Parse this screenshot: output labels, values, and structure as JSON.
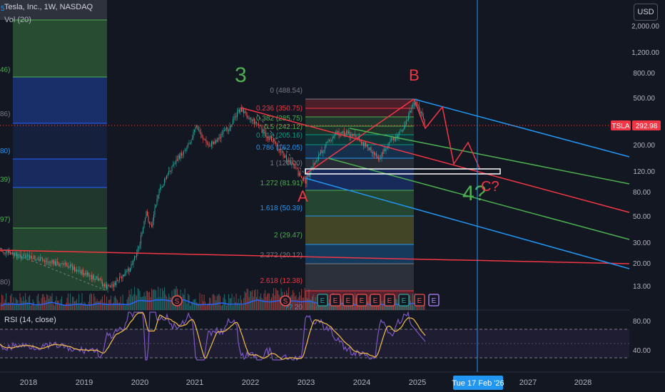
{
  "header": {
    "symbol_line": "Tesla, Inc., 1W, NASDAQ",
    "volume_label": "Vol (20)",
    "rsi_label": "RSI (14, close)",
    "currency": "USD"
  },
  "price_axis": {
    "ticks": [
      "2,000.00",
      "1,200.00",
      "800.00",
      "500.00",
      "200.00",
      "120.00",
      "80.00",
      "50.00",
      "30.00",
      "20.00",
      "13.00"
    ],
    "last_symbol": "TSLA",
    "last_price": "292.98"
  },
  "rsi_axis": {
    "ticks": [
      "80.00",
      "40.00"
    ]
  },
  "time_axis": {
    "ticks": [
      "2018",
      "2019",
      "2020",
      "2021",
      "2022",
      "2023",
      "2024",
      "2025",
      "2027",
      "2028"
    ],
    "crosshair_label": "Tue 17 Feb '26"
  },
  "left_fib_labels": [
    "46)",
    "86)",
    "80)",
    "39)",
    "97)",
    "80)"
  ],
  "left_fib_top": "5",
  "fib_labels": [
    "0 (488.54)",
    "0.236 (350.75)",
    "0.382 (285.75)",
    "0.5 (242.12)",
    "0.618 (205.16)",
    "0.786 (162.05)",
    "1 (120.00)",
    "1.272 (81.91)",
    "1.618 (50.39)",
    "2 (29.47)",
    "2.272 (20.12)",
    "2.618 (12.38)"
  ],
  "fib_bottom_partial": "?? 20",
  "wave_labels": {
    "three": "3",
    "a": "A",
    "b": "B",
    "four": "4?",
    "c": "C?"
  },
  "event_markers": {
    "split": "S",
    "earnings": "E"
  },
  "colors": {
    "background": "#131722",
    "up": "#26a69a",
    "down": "#ef5350",
    "pitchfork_red": "#f23645",
    "pitchfork_green": "#4caf50",
    "pitchfork_blue": "#2196f3",
    "rsi_line": "#7e57c2",
    "rsi_ma": "#f5c046",
    "volume_ma": "#2962ff",
    "crosshair": "#2196f3"
  },
  "chart_data": {
    "type": "candlestick",
    "title": "Tesla, Inc., 1W, NASDAQ",
    "y_scale": "log",
    "ylim": [
      11,
      3000
    ],
    "xlim": [
      "2017-08",
      "2028-10"
    ],
    "last_price": 292.98,
    "swing_points": [
      {
        "label": "3",
        "date": "2021-11",
        "price": 414
      },
      {
        "label": "A",
        "date": "2023-01",
        "price": 101.81
      },
      {
        "label": "B",
        "date": "2024-12",
        "price": 488.54
      },
      {
        "label": "4?",
        "date": "2026-02",
        "price": 120
      },
      {
        "label": "C?",
        "date": "2026-02",
        "price": 120
      }
    ],
    "fibonacci_retracement": [
      {
        "level": 0,
        "price": 488.54
      },
      {
        "level": 0.236,
        "price": 350.75
      },
      {
        "level": 0.382,
        "price": 285.75
      },
      {
        "level": 0.5,
        "price": 242.12
      },
      {
        "level": 0.618,
        "price": 205.16
      },
      {
        "level": 0.786,
        "price": 162.05
      },
      {
        "level": 1,
        "price": 120.0
      },
      {
        "level": 1.272,
        "price": 81.91
      },
      {
        "level": 1.618,
        "price": 50.39
      },
      {
        "level": 2,
        "price": 29.47
      },
      {
        "level": 2.272,
        "price": 20.12
      },
      {
        "level": 2.618,
        "price": 12.38
      }
    ],
    "rsi": {
      "length": 14,
      "source": "close",
      "upper": 70,
      "lower": 30,
      "ticks": [
        80,
        40
      ]
    }
  }
}
